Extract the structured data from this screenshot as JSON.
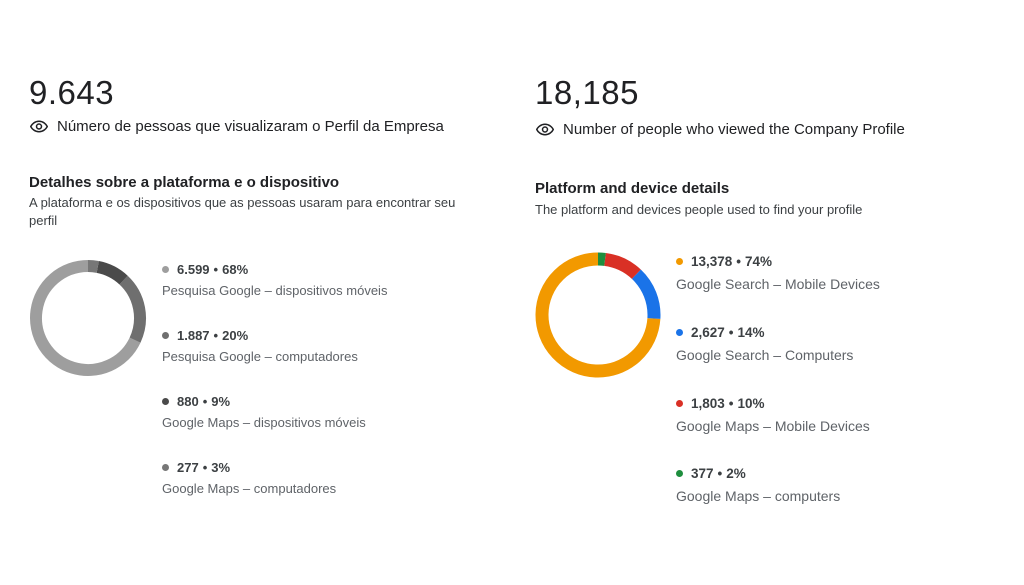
{
  "left": {
    "total": "9.643",
    "metric_label": "Número de pessoas que visualizaram o Perfil da Empresa",
    "section_title": "Detalhes sobre a plataforma e o dispositivo",
    "section_subtitle": "A plataforma e os dispositivos que as pessoas usaram para encontrar seu perfil",
    "items": [
      {
        "count": "6.599",
        "percent": "68%",
        "label": "Pesquisa Google – dispositivos móveis",
        "color": "#9e9e9e",
        "fraction": 0.68
      },
      {
        "count": "1.887",
        "percent": "20%",
        "label": "Pesquisa Google – computadores",
        "color": "#6f6f6f",
        "fraction": 0.2
      },
      {
        "count": "880",
        "percent": "9%",
        "label": "Google Maps – dispositivos móveis",
        "color": "#4a4a4a",
        "fraction": 0.09
      },
      {
        "count": "277",
        "percent": "3%",
        "label": "Google Maps – computadores",
        "color": "#777777",
        "fraction": 0.03
      }
    ]
  },
  "right": {
    "total": "18,185",
    "metric_label": "Number of people who viewed the Company Profile",
    "section_title": "Platform and device details",
    "section_subtitle": "The platform and devices people used to find your profile",
    "items": [
      {
        "count": "13,378",
        "percent": "74%",
        "label": "Google Search – Mobile Devices",
        "color": "#f29900",
        "fraction": 0.74
      },
      {
        "count": "2,627",
        "percent": "14%",
        "label": "Google Search – Computers",
        "color": "#1a73e8",
        "fraction": 0.14
      },
      {
        "count": "1,803",
        "percent": "10%",
        "label": "Google Maps – Mobile Devices",
        "color": "#d93025",
        "fraction": 0.1
      },
      {
        "count": "377",
        "percent": "2%",
        "label": "Google Maps – computers",
        "color": "#1e8e3e",
        "fraction": 0.02
      }
    ]
  },
  "icons": {
    "metric": "eye-icon"
  }
}
